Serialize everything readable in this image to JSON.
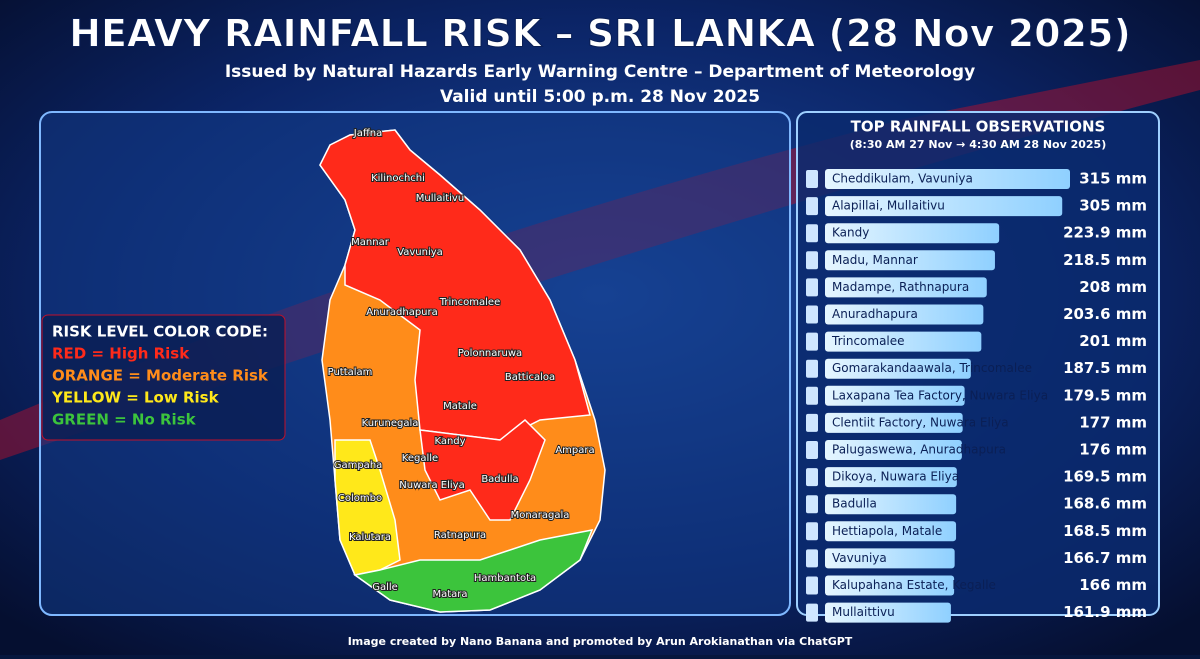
{
  "header": {
    "title": "HEAVY RAINFALL RISK – SRI LANKA (28 Nov 2025)",
    "subtitle": "Issued by Natural Hazards Early Warning Centre – Department of Meteorology",
    "validity": "Valid until 5:00 p.m. 28 Nov 2025"
  },
  "legend": {
    "title": "RISK LEVEL COLOR CODE:",
    "items": [
      {
        "text": "RED = High Risk",
        "color": "#ff2a1a"
      },
      {
        "text": "ORANGE = Moderate Risk",
        "color": "#ff8c1a"
      },
      {
        "text": "YELLOW = Low Risk",
        "color": "#ffe81a"
      },
      {
        "text": "GREEN = No Risk",
        "color": "#3cc43c"
      }
    ]
  },
  "map": {
    "places": [
      "Jaffna",
      "Kilinochchi",
      "Mullaitivu",
      "Mannar",
      "Vavuniya",
      "Anuradhapura",
      "Trincomalee",
      "Polonnaruwa",
      "Batticaloa",
      "Puttalam",
      "Kurunegala",
      "Matale",
      "Kandy",
      "Kegalle",
      "Gampaha",
      "Colombo",
      "Nuwara Eliya",
      "Badulla",
      "Ampara",
      "Monaragala",
      "Kalutara",
      "Ratnapura",
      "Galle",
      "Matara",
      "Hambantota"
    ]
  },
  "observations": {
    "title": "TOP RAINFALL OBSERVATIONS",
    "period": "(8:30 AM 27 Nov → 4:30 AM 28 Nov 2025)",
    "rows": [
      {
        "station": "Cheddikulam, Vavuniya",
        "value": 315,
        "label": "315 mm"
      },
      {
        "station": "Alapillai, Mullaitivu",
        "value": 305,
        "label": "305 mm"
      },
      {
        "station": "Kandy",
        "value": 223.9,
        "label": "223.9 mm"
      },
      {
        "station": "Madu, Mannar",
        "value": 218.5,
        "label": "218.5 mm"
      },
      {
        "station": "Madampe, Rathnapura",
        "value": 208,
        "label": "208 mm"
      },
      {
        "station": "Anuradhapura",
        "value": 203.6,
        "label": "203.6 mm"
      },
      {
        "station": "Trincomalee",
        "value": 201,
        "label": "201 mm"
      },
      {
        "station": "Gomarakandaawala, Trincomalee",
        "value": 187.5,
        "label": "187.5 mm"
      },
      {
        "station": "Laxapana Tea Factory, Nuwara Eliya",
        "value": 179.5,
        "label": "179.5 mm"
      },
      {
        "station": "Clentiit Factory, Nuwara Eliya",
        "value": 177,
        "label": "177 mm"
      },
      {
        "station": "Palugaswewa, Anuradhapura",
        "value": 176,
        "label": "176 mm"
      },
      {
        "station": "Dikoya, Nuwara Eliya",
        "value": 169.5,
        "label": "169.5 mm"
      },
      {
        "station": "Badulla",
        "value": 168.6,
        "label": "168.6 mm"
      },
      {
        "station": "Hettiapola, Matale",
        "value": 168.5,
        "label": "168.5 mm"
      },
      {
        "station": "Vavuniya",
        "value": 166.7,
        "label": "166.7 mm"
      },
      {
        "station": "Kalupahana Estate, Kegalle",
        "value": 166,
        "label": "166 mm"
      },
      {
        "station": "Mullaittivu",
        "value": 161.9,
        "label": "161.9 mm"
      }
    ]
  },
  "footer": "Image created by Nano Banana and promoted by Arun Arokianathan via ChatGPT"
}
